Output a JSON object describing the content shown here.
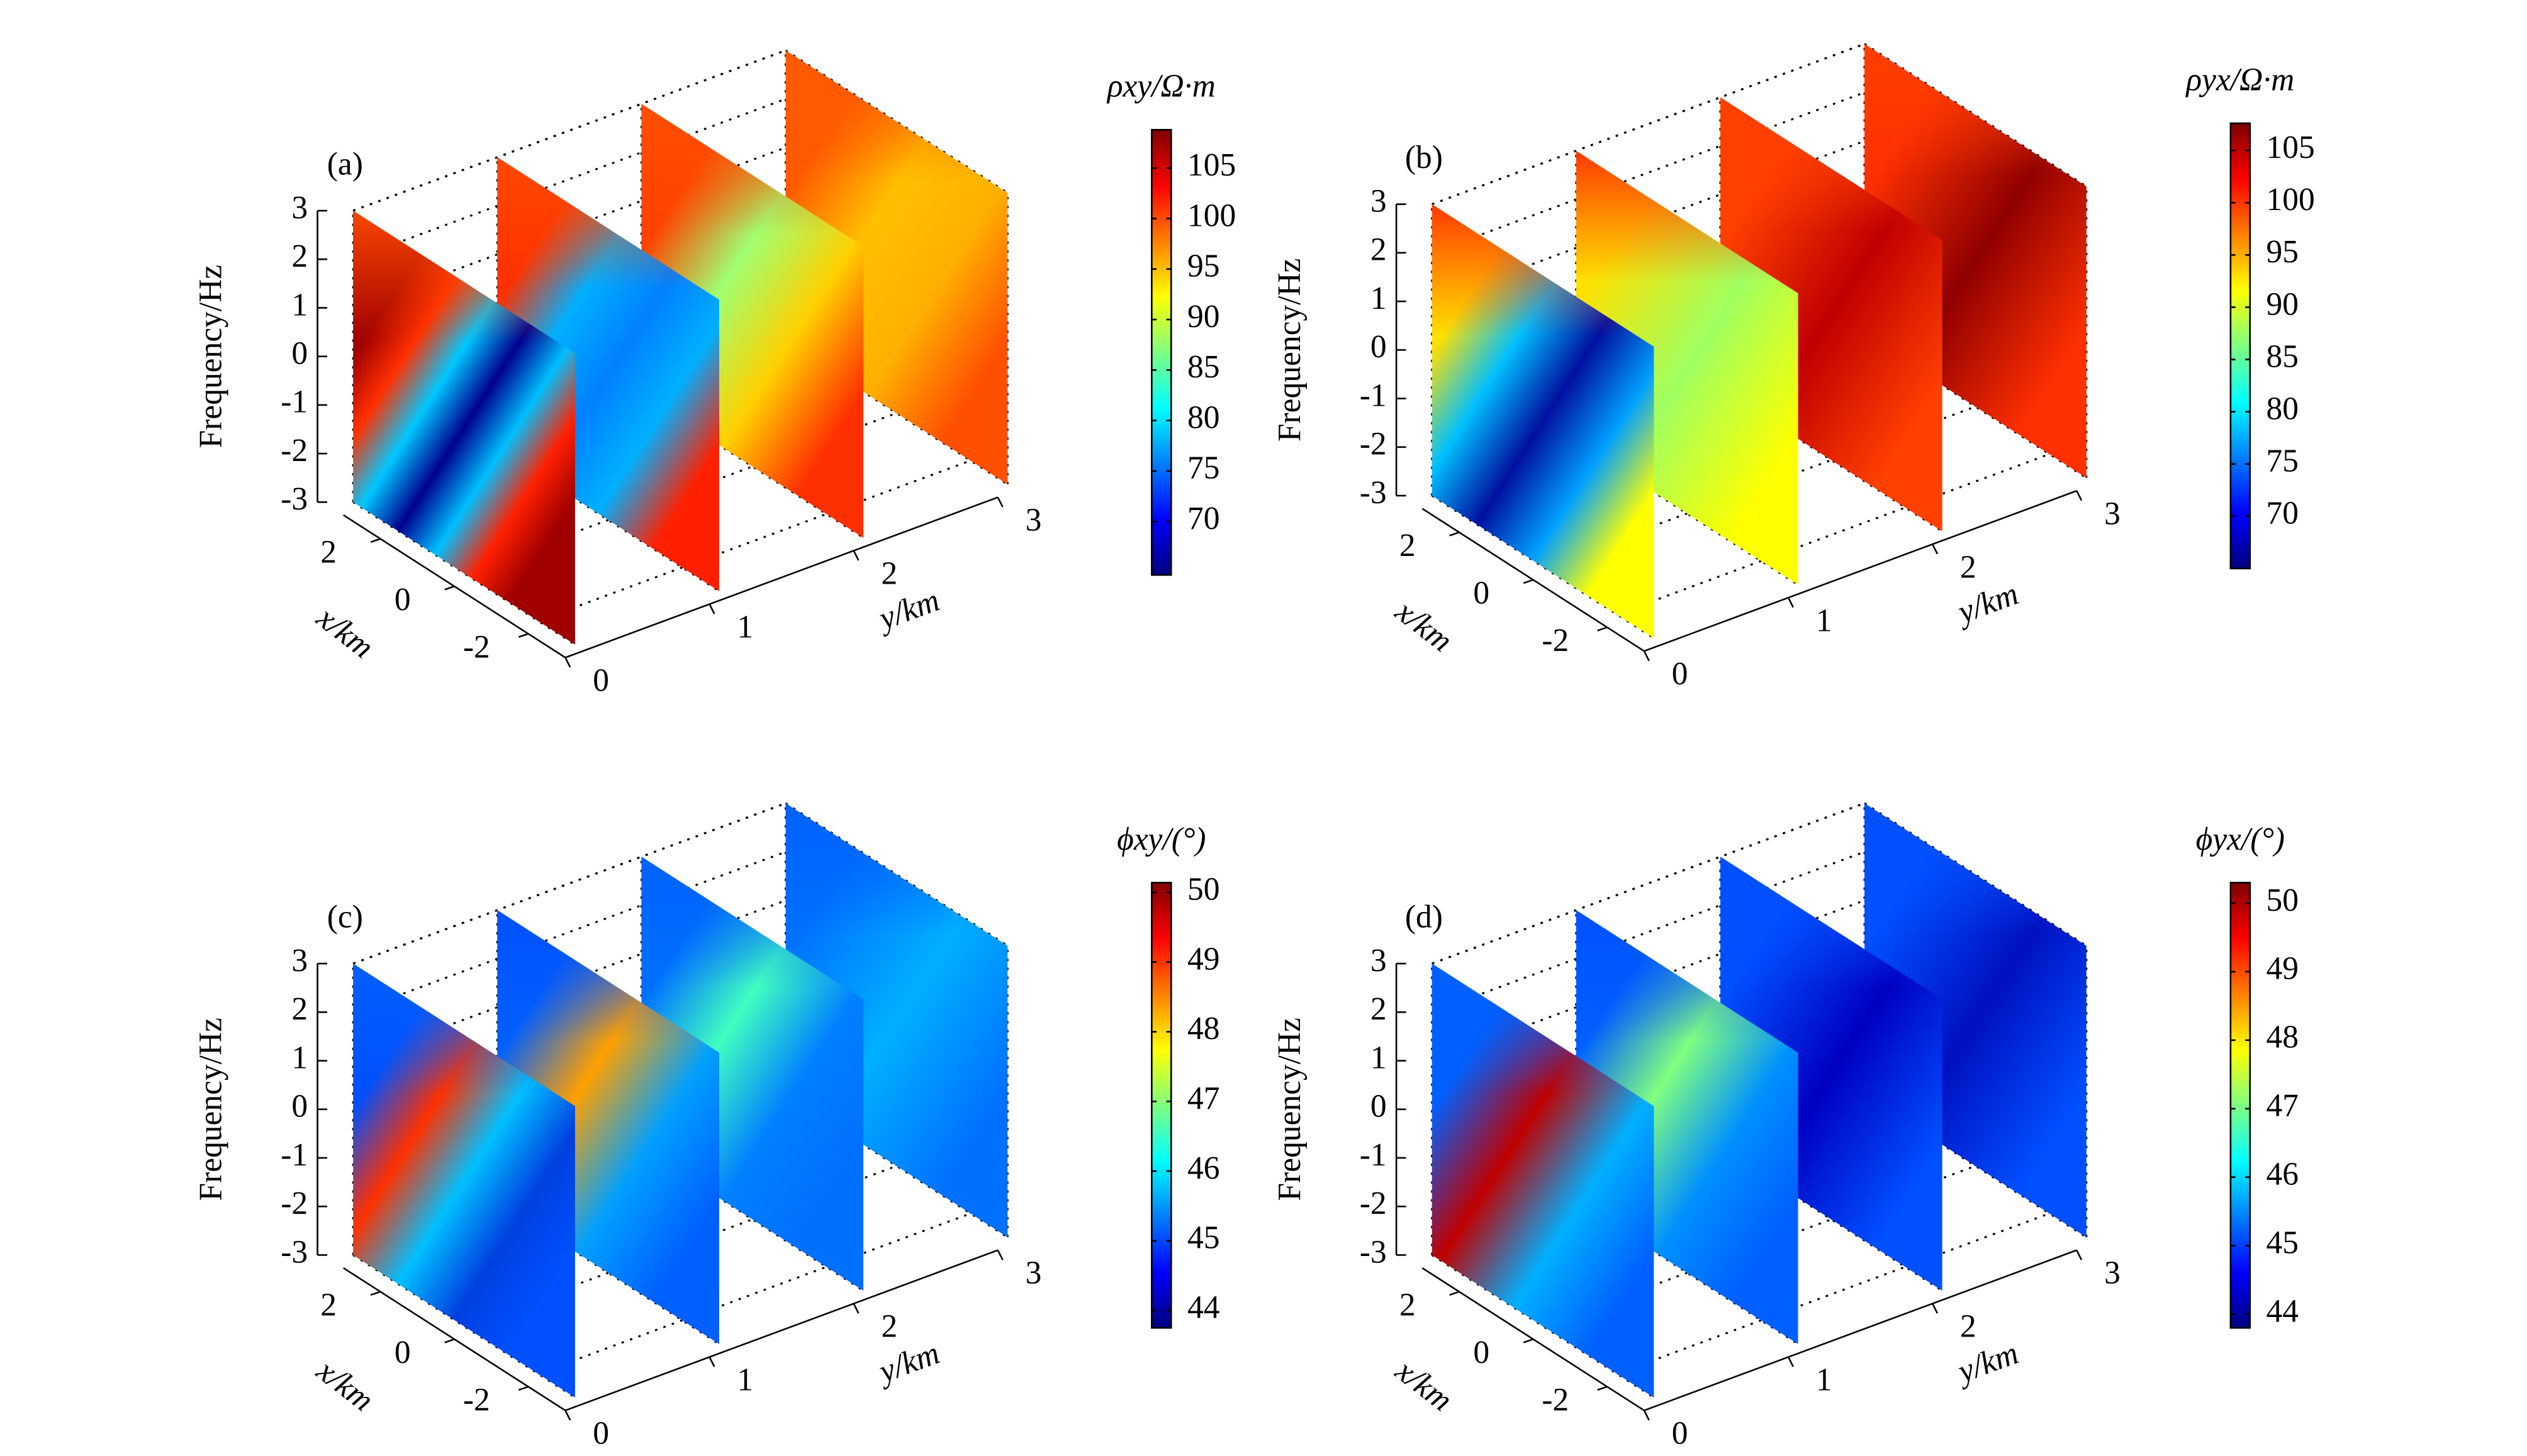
{
  "chart_data": [
    {
      "type": "slice3d",
      "title": "(a)",
      "colorbar_label": "ρxy/Ω·m",
      "zlabel": "Frequency/Hz",
      "xlabel": "x/km",
      "ylabel": "y/km",
      "xlim": [
        -3,
        3
      ],
      "xticks": [
        -2,
        0,
        2
      ],
      "ylim": [
        0,
        3
      ],
      "yticks": [
        0,
        1,
        2,
        3
      ],
      "zlim": [
        -3,
        3
      ],
      "zticks": [
        -3,
        -2,
        -1,
        0,
        1,
        2,
        3
      ],
      "colormap": "jet",
      "clim": [
        64.7,
        108.8
      ],
      "cticks": [
        70,
        75,
        80,
        85,
        90,
        95,
        100,
        105
      ],
      "slices": [
        {
          "y": 0,
          "colors": [
            "#a00000",
            "#ff3000",
            "#00c8ff",
            "#000090",
            "#00c0ff",
            "#ff2000",
            "#a00000"
          ],
          "top": "#ff4a00"
        },
        {
          "y": 1,
          "colors": [
            "#ff3000",
            "#00b0ff",
            "#0080ff",
            "#00b0ff",
            "#ff2000"
          ],
          "top": "#ff4a00"
        },
        {
          "y": 2,
          "colors": [
            "#ff4000",
            "#a0ff70",
            "#ffd000",
            "#ff3000"
          ],
          "top": "#ff5000"
        },
        {
          "y": 3,
          "colors": [
            "#ff5a00",
            "#ffc000",
            "#ffb000",
            "#ff5000"
          ],
          "top": "#ff5a00"
        }
      ]
    },
    {
      "type": "slice3d",
      "title": "(b)",
      "colorbar_label": "ρyx/Ω·m",
      "zlabel": "Frequency/Hz",
      "xlabel": "x/km",
      "ylabel": "y/km",
      "xlim": [
        -3,
        3
      ],
      "xticks": [
        -2,
        0,
        2
      ],
      "ylim": [
        0,
        3
      ],
      "yticks": [
        0,
        1,
        2,
        3
      ],
      "zlim": [
        -3,
        3
      ],
      "zticks": [
        -3,
        -2,
        -1,
        0,
        1,
        2,
        3
      ],
      "colormap": "jet",
      "clim": [
        65,
        107.6
      ],
      "cticks": [
        70,
        75,
        80,
        85,
        90,
        95,
        100,
        105
      ],
      "slices": [
        {
          "y": 0,
          "colors": [
            "#ffe000",
            "#00c0ff",
            "#0010a0",
            "#00a0ff",
            "#ffff00"
          ],
          "top": "#ff3000"
        },
        {
          "y": 1,
          "colors": [
            "#ffe000",
            "#a0ff60",
            "#ffff00"
          ],
          "top": "#ff3000"
        },
        {
          "y": 2,
          "colors": [
            "#ff4000",
            "#c00000",
            "#ff4000"
          ],
          "top": "#ff4000"
        },
        {
          "y": 3,
          "colors": [
            "#ff3000",
            "#900000",
            "#ff3000"
          ],
          "top": "#ff4000"
        }
      ]
    },
    {
      "type": "slice3d",
      "title": "(c)",
      "colorbar_label": "ϕxy/(°)",
      "zlabel": "Frequency/Hz",
      "xlabel": "x/km",
      "ylabel": "y/km",
      "xlim": [
        -3,
        3
      ],
      "xticks": [
        -2,
        0,
        2
      ],
      "ylim": [
        0,
        3
      ],
      "yticks": [
        0,
        1,
        2,
        3
      ],
      "zlim": [
        -3,
        3
      ],
      "zticks": [
        -3,
        -2,
        -1,
        0,
        1,
        2,
        3
      ],
      "colormap": "jet",
      "clim": [
        43.75,
        50.14
      ],
      "cticks": [
        44,
        45,
        46,
        47,
        48,
        49,
        50
      ],
      "slices": [
        {
          "y": 0,
          "colors": [
            "#0050ff",
            "#ff3000",
            "#00c0ff",
            "#0040e0",
            "#0050ff"
          ],
          "top": "#0060ff"
        },
        {
          "y": 1,
          "colors": [
            "#0060ff",
            "#ffa000",
            "#00a0ff",
            "#0060ff"
          ],
          "top": "#0050ff"
        },
        {
          "y": 2,
          "colors": [
            "#0070ff",
            "#40ffc0",
            "#0080ff",
            "#0070ff"
          ],
          "top": "#0060ff"
        },
        {
          "y": 3,
          "colors": [
            "#0070ff",
            "#00b0ff",
            "#0070ff"
          ],
          "top": "#0060ff"
        }
      ]
    },
    {
      "type": "slice3d",
      "title": "(d)",
      "colorbar_label": "ϕyx/(°)",
      "zlabel": "Frequency/Hz",
      "xlabel": "x/km",
      "ylabel": "y/km",
      "xlim": [
        -3,
        3
      ],
      "xticks": [
        -2,
        0,
        2
      ],
      "ylim": [
        0,
        3
      ],
      "yticks": [
        0,
        1,
        2,
        3
      ],
      "zlim": [
        -3,
        3
      ],
      "zticks": [
        -3,
        -2,
        -1,
        0,
        1,
        2,
        3
      ],
      "colormap": "jet",
      "clim": [
        43.8,
        50.3
      ],
      "cticks": [
        44,
        45,
        46,
        47,
        48,
        49,
        50
      ],
      "slices": [
        {
          "y": 0,
          "colors": [
            "#0060ff",
            "#c00000",
            "#00b0ff",
            "#0060ff"
          ],
          "top": "#0060ff"
        },
        {
          "y": 1,
          "colors": [
            "#0060ff",
            "#80ff80",
            "#0090ff",
            "#0060ff"
          ],
          "top": "#0050ff"
        },
        {
          "y": 2,
          "colors": [
            "#0050ff",
            "#0000c0",
            "#0050ff"
          ],
          "top": "#0050ff"
        },
        {
          "y": 3,
          "colors": [
            "#0050ff",
            "#0010c0",
            "#0050ff"
          ],
          "top": "#0050ff"
        }
      ]
    }
  ]
}
